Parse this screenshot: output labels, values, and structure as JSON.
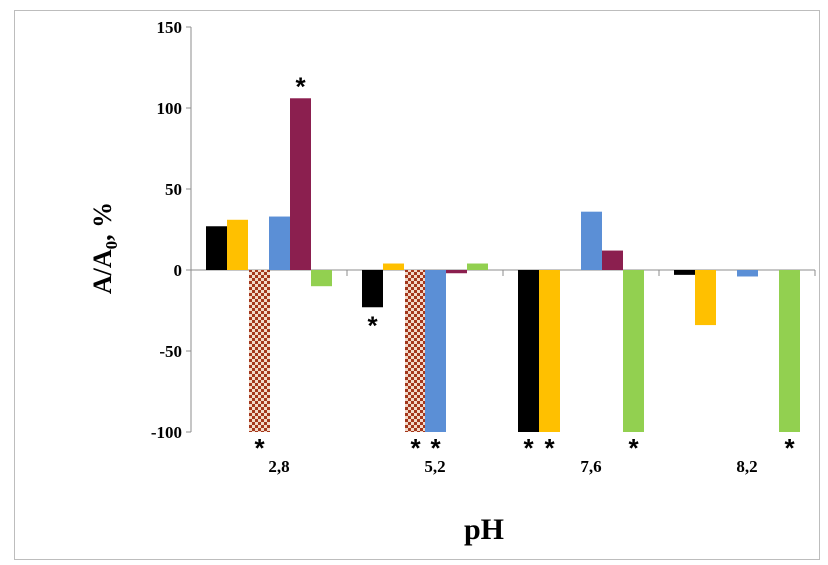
{
  "chart_data": {
    "type": "bar",
    "title": "",
    "xlabel": "pH",
    "ylabel": "A/A0, %",
    "ylabel_main": "A/A",
    "ylabel_sub": "0",
    "ylabel_rest": ", %",
    "categories": [
      "2,8",
      "5,2",
      "7,6",
      "8,2"
    ],
    "ylim": [
      -100,
      150
    ],
    "yticks": [
      -100,
      -50,
      0,
      50,
      100,
      150
    ],
    "grid": false,
    "legend": "none",
    "series": [
      {
        "color": "#000000",
        "pattern": false,
        "values": [
          27,
          -23,
          -100,
          -3
        ]
      },
      {
        "color": "#ffc000",
        "pattern": false,
        "values": [
          31,
          4,
          -100,
          -34
        ]
      },
      {
        "color": "#b5482a",
        "pattern": true,
        "values": [
          -100,
          -100,
          0,
          0
        ]
      },
      {
        "color": "#5b8fd6",
        "pattern": false,
        "values": [
          33,
          -100,
          36,
          -4
        ]
      },
      {
        "color": "#8b1f4f",
        "pattern": false,
        "values": [
          106,
          -2,
          12,
          0
        ]
      },
      {
        "color": "#92d050",
        "pattern": false,
        "values": [
          -10,
          4,
          -100,
          -100
        ]
      }
    ],
    "annotations": [
      {
        "text": "*",
        "category": 0,
        "series": 4,
        "position": "above"
      },
      {
        "text": "*",
        "category": 0,
        "series": 2,
        "position": "below"
      },
      {
        "text": "*",
        "category": 1,
        "series": 0,
        "position": "below"
      },
      {
        "text": "*",
        "category": 1,
        "series": 2,
        "position": "below"
      },
      {
        "text": "*",
        "category": 1,
        "series": 3,
        "position": "below"
      },
      {
        "text": "*",
        "category": 2,
        "series": 0,
        "position": "below"
      },
      {
        "text": "*",
        "category": 2,
        "series": 1,
        "position": "below"
      },
      {
        "text": "*",
        "category": 2,
        "series": 5,
        "position": "below"
      },
      {
        "text": "*",
        "category": 3,
        "series": 5,
        "position": "below"
      }
    ]
  }
}
